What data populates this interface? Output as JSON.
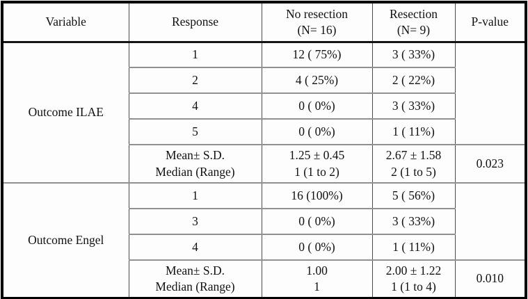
{
  "colors": {
    "outer_border": "#000000",
    "section_border": "#141414",
    "inner_rule": "#909090",
    "column_rule": "#4a4a4a",
    "text": "#111111",
    "background": "#fdfdfd"
  },
  "table": {
    "header": {
      "variable": "Variable",
      "response": "Response",
      "no_resection": "No resection\n(N= 16)",
      "resection": "Resection\n(N= 9)",
      "p_value": "P-value"
    },
    "sections": [
      {
        "variable": "Outcome ILAE",
        "p_value_blank": "",
        "rows": [
          {
            "response": "1",
            "no_resection": "12 ( 75%)",
            "resection": "3 ( 33%)"
          },
          {
            "response": "2",
            "no_resection": "4 ( 25%)",
            "resection": "2 ( 22%)"
          },
          {
            "response": "4",
            "no_resection": "0 ( 0%)",
            "resection": "3 ( 33%)"
          },
          {
            "response": "5",
            "no_resection": "0 ( 0%)",
            "resection": "1 ( 11%)"
          }
        ],
        "summary": {
          "response": "Mean± S.D.\nMedian (Range)",
          "no_resection": "1.25 ± 0.45\n1 (1 to 2)",
          "resection": "2.67 ± 1.58\n2 (1 to 5)",
          "p_value": "0.023"
        }
      },
      {
        "variable": "Outcome Engel",
        "p_value_blank": "",
        "rows": [
          {
            "response": "1",
            "no_resection": "16 (100%)",
            "resection": "5 ( 56%)"
          },
          {
            "response": "3",
            "no_resection": "0 ( 0%)",
            "resection": "3 ( 33%)"
          },
          {
            "response": "4",
            "no_resection": "0 ( 0%)",
            "resection": "1 ( 11%)"
          }
        ],
        "summary": {
          "response": "Mean± S.D.\nMedian (Range)",
          "no_resection": "1.00\n1",
          "resection": "2.00 ± 1.22\n1 (1 to 4)",
          "p_value": "0.010"
        }
      }
    ]
  }
}
